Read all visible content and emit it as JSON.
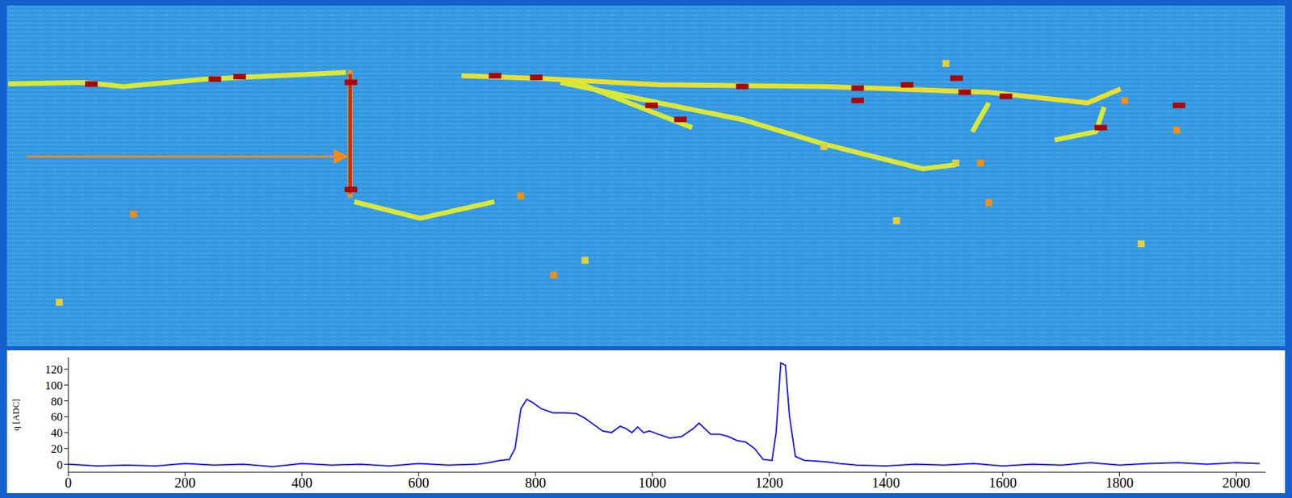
{
  "chart_data": {
    "type": "line",
    "y_label": "q [ADC]",
    "color": "#1a1aff",
    "xlim": [
      0,
      2050
    ],
    "ylim": [
      -10,
      135
    ],
    "xticks": [
      0,
      200,
      400,
      600,
      800,
      1000,
      1200,
      1400,
      1600,
      1800,
      2000
    ],
    "yticks": [
      0,
      20,
      40,
      60,
      80,
      100,
      120
    ],
    "grid": false,
    "x": [
      0,
      50,
      100,
      150,
      200,
      250,
      300,
      350,
      400,
      450,
      500,
      550,
      600,
      650,
      700,
      720,
      740,
      755,
      765,
      775,
      785,
      795,
      810,
      830,
      850,
      870,
      885,
      900,
      915,
      930,
      945,
      955,
      965,
      975,
      985,
      995,
      1010,
      1030,
      1050,
      1070,
      1080,
      1090,
      1100,
      1115,
      1130,
      1145,
      1160,
      1175,
      1190,
      1205,
      1212,
      1220,
      1228,
      1235,
      1245,
      1260,
      1280,
      1300,
      1320,
      1350,
      1400,
      1450,
      1500,
      1550,
      1600,
      1650,
      1700,
      1750,
      1800,
      1850,
      1900,
      1950,
      2000,
      2040
    ],
    "values": [
      0,
      -2,
      -1,
      -2,
      1,
      -1,
      0,
      -3,
      1,
      -1,
      0,
      -2,
      1,
      -1,
      0,
      2,
      5,
      6,
      20,
      70,
      82,
      78,
      70,
      65,
      65,
      64,
      58,
      50,
      42,
      40,
      48,
      45,
      40,
      47,
      40,
      42,
      38,
      33,
      35,
      45,
      52,
      45,
      38,
      38,
      35,
      30,
      28,
      20,
      6,
      5,
      40,
      128,
      125,
      60,
      10,
      5,
      4,
      3,
      1,
      -1,
      -2,
      0,
      -1,
      1,
      -2,
      0,
      -1,
      2,
      -1,
      1,
      2,
      0,
      2,
      1
    ]
  }
}
